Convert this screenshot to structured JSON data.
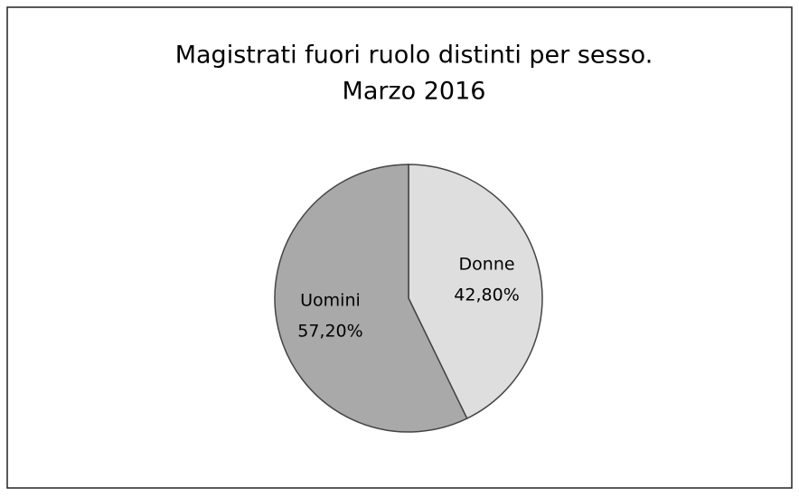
{
  "chart_data": {
    "type": "pie",
    "title": "Magistrati fuori ruolo distinti per sesso.",
    "subtitle": "Marzo 2016",
    "categories": [
      "Donne",
      "Uomini"
    ],
    "values": [
      42.8,
      57.2
    ],
    "value_labels": [
      "42,80%",
      "57,20%"
    ],
    "colors": [
      "#dedede",
      "#a9a9a9"
    ]
  }
}
